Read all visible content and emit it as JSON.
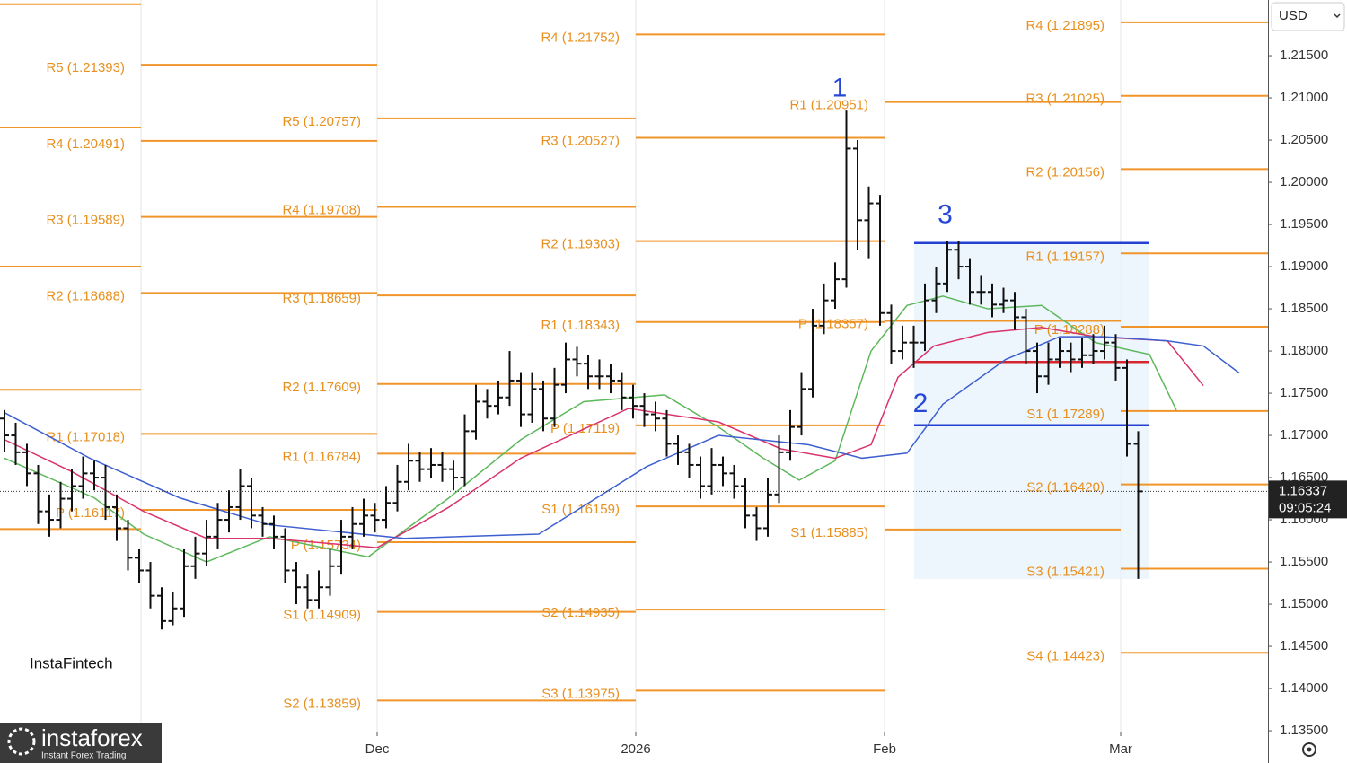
{
  "chart_data": {
    "type": "ohlc",
    "xlim": [
      -0.4,
      112.56
    ],
    "ylim": [
      1.1349,
      1.2216
    ],
    "xticks": [
      {
        "value": 33.2,
        "label": "Dec"
      },
      {
        "value": 56.24,
        "label": "2026"
      },
      {
        "value": 78.4,
        "label": "Feb"
      },
      {
        "value": 99.44,
        "label": "Mar"
      }
    ],
    "yticks": [
      {
        "value": 1.135,
        "label": "1.13500"
      },
      {
        "value": 1.14,
        "label": "1.14000"
      },
      {
        "value": 1.145,
        "label": "1.14500"
      },
      {
        "value": 1.15,
        "label": "1.15000"
      },
      {
        "value": 1.155,
        "label": "1.15500"
      },
      {
        "value": 1.16,
        "label": "1.16000"
      },
      {
        "value": 1.165,
        "label": "1.16500"
      },
      {
        "value": 1.17,
        "label": "1.17000"
      },
      {
        "value": 1.175,
        "label": "1.17500"
      },
      {
        "value": 1.18,
        "label": "1.18000"
      },
      {
        "value": 1.185,
        "label": "1.18500"
      },
      {
        "value": 1.19,
        "label": "1.19000"
      },
      {
        "value": 1.195,
        "label": "1.19500"
      },
      {
        "value": 1.2,
        "label": "1.20000"
      },
      {
        "value": 1.205,
        "label": "1.20500"
      },
      {
        "value": 1.21,
        "label": "1.21000"
      },
      {
        "value": 1.215,
        "label": "1.21500"
      }
    ],
    "bar_color": "#111111",
    "pivot_color": "#f0952a",
    "x": [
      0,
      1,
      2,
      3,
      4,
      5,
      6,
      7,
      8,
      9,
      10,
      11,
      12,
      13,
      14,
      15,
      16,
      17,
      18,
      19,
      20,
      21,
      22,
      23,
      24,
      25,
      26,
      27,
      28,
      29,
      30,
      31,
      32,
      33,
      34,
      35,
      36,
      37,
      38,
      39,
      40,
      41,
      42,
      43,
      44,
      45,
      46,
      47,
      48,
      49,
      50,
      51,
      52,
      53,
      54,
      55,
      56,
      57,
      58,
      59,
      60,
      61,
      62,
      63,
      64,
      65,
      66,
      67,
      68,
      69,
      70,
      71,
      72,
      73,
      74,
      75,
      76,
      77,
      78,
      79,
      80,
      81,
      82,
      83,
      84,
      85,
      86,
      87,
      88,
      89,
      90,
      91,
      92,
      93,
      94,
      95,
      96,
      97,
      98,
      99,
      100,
      101
    ],
    "ohlc": [
      [
        1.172,
        1.173,
        1.168,
        1.17
      ],
      [
        1.17,
        1.1715,
        1.1665,
        1.168
      ],
      [
        1.168,
        1.169,
        1.164,
        1.1655
      ],
      [
        1.1655,
        1.1665,
        1.1595,
        1.161
      ],
      [
        1.161,
        1.163,
        1.158,
        1.16
      ],
      [
        1.16,
        1.1645,
        1.159,
        1.1625
      ],
      [
        1.1625,
        1.166,
        1.161,
        1.164
      ],
      [
        1.164,
        1.1675,
        1.1625,
        1.1655
      ],
      [
        1.1655,
        1.167,
        1.1635,
        1.165
      ],
      [
        1.165,
        1.1665,
        1.16,
        1.1615
      ],
      [
        1.1615,
        1.163,
        1.1575,
        1.159
      ],
      [
        1.159,
        1.16,
        1.154,
        1.1555
      ],
      [
        1.1555,
        1.1565,
        1.1525,
        1.154
      ],
      [
        1.154,
        1.155,
        1.1495,
        1.151
      ],
      [
        1.151,
        1.152,
        1.147,
        1.148
      ],
      [
        1.148,
        1.1515,
        1.1475,
        1.1495
      ],
      [
        1.1495,
        1.1565,
        1.1485,
        1.1545
      ],
      [
        1.1545,
        1.158,
        1.153,
        1.156
      ],
      [
        1.156,
        1.16,
        1.1545,
        1.158
      ],
      [
        1.158,
        1.162,
        1.1565,
        1.16
      ],
      [
        1.16,
        1.1635,
        1.1585,
        1.1615
      ],
      [
        1.1615,
        1.166,
        1.16,
        1.164
      ],
      [
        1.164,
        1.165,
        1.159,
        1.1605
      ],
      [
        1.1605,
        1.1615,
        1.158,
        1.1595
      ],
      [
        1.1595,
        1.1605,
        1.1565,
        1.158
      ],
      [
        1.158,
        1.159,
        1.1525,
        1.154
      ],
      [
        1.154,
        1.155,
        1.15,
        1.152
      ],
      [
        1.152,
        1.1535,
        1.1495,
        1.1505
      ],
      [
        1.1505,
        1.154,
        1.1495,
        1.152
      ],
      [
        1.152,
        1.1565,
        1.151,
        1.1545
      ],
      [
        1.1545,
        1.16,
        1.1535,
        1.158
      ],
      [
        1.158,
        1.1615,
        1.1565,
        1.1595
      ],
      [
        1.1595,
        1.1625,
        1.158,
        1.1605
      ],
      [
        1.1605,
        1.162,
        1.1585,
        1.16
      ],
      [
        1.16,
        1.164,
        1.159,
        1.162
      ],
      [
        1.162,
        1.1665,
        1.161,
        1.1645
      ],
      [
        1.1645,
        1.169,
        1.1635,
        1.167
      ],
      [
        1.167,
        1.168,
        1.1645,
        1.166
      ],
      [
        1.166,
        1.1685,
        1.165,
        1.1665
      ],
      [
        1.1665,
        1.168,
        1.1645,
        1.166
      ],
      [
        1.166,
        1.167,
        1.1635,
        1.165
      ],
      [
        1.165,
        1.1725,
        1.164,
        1.1705
      ],
      [
        1.1705,
        1.176,
        1.1695,
        1.174
      ],
      [
        1.174,
        1.1755,
        1.172,
        1.1735
      ],
      [
        1.1735,
        1.1765,
        1.1725,
        1.1745
      ],
      [
        1.1745,
        1.18,
        1.1735,
        1.1765
      ],
      [
        1.1765,
        1.1775,
        1.171,
        1.1725
      ],
      [
        1.1725,
        1.1775,
        1.1715,
        1.1755
      ],
      [
        1.1755,
        1.1765,
        1.1705,
        1.172
      ],
      [
        1.172,
        1.178,
        1.171,
        1.176
      ],
      [
        1.176,
        1.181,
        1.175,
        1.179
      ],
      [
        1.179,
        1.1805,
        1.177,
        1.1785
      ],
      [
        1.1785,
        1.1795,
        1.1755,
        1.177
      ],
      [
        1.177,
        1.179,
        1.1755,
        1.177
      ],
      [
        1.177,
        1.1785,
        1.175,
        1.1765
      ],
      [
        1.1765,
        1.1775,
        1.173,
        1.1745
      ],
      [
        1.1745,
        1.176,
        1.172,
        1.1735
      ],
      [
        1.1735,
        1.175,
        1.171,
        1.1725
      ],
      [
        1.1725,
        1.174,
        1.1705,
        1.172
      ],
      [
        1.172,
        1.173,
        1.1675,
        1.169
      ],
      [
        1.169,
        1.17,
        1.1665,
        1.168
      ],
      [
        1.168,
        1.169,
        1.165,
        1.1665
      ],
      [
        1.1665,
        1.1675,
        1.1625,
        1.164
      ],
      [
        1.164,
        1.1685,
        1.163,
        1.1665
      ],
      [
        1.1665,
        1.1675,
        1.164,
        1.1655
      ],
      [
        1.1655,
        1.1665,
        1.1625,
        1.164
      ],
      [
        1.164,
        1.165,
        1.159,
        1.1605
      ],
      [
        1.1605,
        1.1615,
        1.1575,
        1.159
      ],
      [
        1.159,
        1.165,
        1.158,
        1.163
      ],
      [
        1.163,
        1.17,
        1.162,
        1.168
      ],
      [
        1.168,
        1.173,
        1.167,
        1.171
      ],
      [
        1.171,
        1.1775,
        1.17,
        1.1755
      ],
      [
        1.1755,
        1.185,
        1.1745,
        1.183
      ],
      [
        1.183,
        1.188,
        1.182,
        1.186
      ],
      [
        1.186,
        1.1905,
        1.185,
        1.1885
      ],
      [
        1.1885,
        1.2085,
        1.1875,
        1.204
      ],
      [
        1.204,
        1.205,
        1.192,
        1.1955
      ],
      [
        1.1955,
        1.1995,
        1.191,
        1.1975
      ],
      [
        1.1975,
        1.1985,
        1.183,
        1.1845
      ],
      [
        1.1845,
        1.1855,
        1.1785,
        1.18
      ],
      [
        1.18,
        1.183,
        1.179,
        1.181
      ],
      [
        1.181,
        1.183,
        1.178,
        1.181
      ],
      [
        1.181,
        1.188,
        1.18,
        1.186
      ],
      [
        1.186,
        1.19,
        1.1845,
        1.188
      ],
      [
        1.188,
        1.193,
        1.187,
        1.192
      ],
      [
        1.192,
        1.193,
        1.1885,
        1.19
      ],
      [
        1.19,
        1.191,
        1.1855,
        1.187
      ],
      [
        1.187,
        1.189,
        1.1855,
        1.187
      ],
      [
        1.187,
        1.188,
        1.184,
        1.1855
      ],
      [
        1.1855,
        1.1875,
        1.1845,
        1.186
      ],
      [
        1.186,
        1.187,
        1.1825,
        1.184
      ],
      [
        1.184,
        1.185,
        1.1785,
        1.18
      ],
      [
        1.18,
        1.181,
        1.175,
        1.177
      ],
      [
        1.177,
        1.181,
        1.176,
        1.179
      ],
      [
        1.179,
        1.1815,
        1.178,
        1.18
      ],
      [
        1.18,
        1.181,
        1.1775,
        1.179
      ],
      [
        1.179,
        1.1815,
        1.178,
        1.1795
      ],
      [
        1.1795,
        1.182,
        1.1785,
        1.18
      ],
      [
        1.18,
        1.183,
        1.179,
        1.181
      ],
      [
        1.181,
        1.182,
        1.1765,
        1.178
      ],
      [
        1.178,
        1.179,
        1.1675,
        1.169
      ],
      [
        1.169,
        1.1705,
        1.153,
        1.16337
      ]
    ],
    "series": [
      {
        "color": "#5db85b",
        "x": [
          0,
          8,
          12.4,
          18,
          23.6,
          32.4,
          39.6,
          46,
          51.6,
          58.8,
          63.6,
          67.6,
          70.8,
          74,
          77.2,
          80.4,
          83.6,
          87.6,
          92.4,
          97.2,
          102,
          104.4
        ],
        "values": [
          1.1673,
          1.1626,
          1.1583,
          1.155,
          1.158,
          1.1556,
          1.1626,
          1.1695,
          1.174,
          1.1748,
          1.171,
          1.1673,
          1.1647,
          1.167,
          1.18,
          1.1854,
          1.1865,
          1.185,
          1.1854,
          1.181,
          1.1796,
          1.173
        ]
      },
      {
        "color": "#d9336b",
        "x": [
          0,
          6,
          12.4,
          18,
          23.6,
          33.2,
          39.6,
          46,
          55.6,
          63.6,
          69.2,
          74,
          77.2,
          79.6,
          82.8,
          87.6,
          92.4,
          97.2,
          103.6,
          106.8
        ],
        "values": [
          1.1695,
          1.1657,
          1.161,
          1.1578,
          1.1578,
          1.1567,
          1.1615,
          1.1673,
          1.1732,
          1.1716,
          1.1684,
          1.1673,
          1.1689,
          1.1769,
          1.1806,
          1.1822,
          1.1828,
          1.1817,
          1.1812,
          1.1759
        ]
      },
      {
        "color": "#3d5fd0",
        "x": [
          0,
          7.6,
          15.6,
          23.6,
          35.6,
          47.6,
          57.2,
          63.6,
          71.6,
          76.4,
          80.4,
          83.6,
          89.2,
          94,
          98,
          103.6,
          106.8,
          110
        ],
        "values": [
          1.1727,
          1.1673,
          1.1626,
          1.1594,
          1.1578,
          1.1583,
          1.1663,
          1.17,
          1.1689,
          1.1673,
          1.1679,
          1.1737,
          1.179,
          1.1817,
          1.1817,
          1.1812,
          1.1806,
          1.1774
        ]
      }
    ],
    "pivots": [
      {
        "start": -0.4,
        "end": 12.16,
        "levels": [
          {
            "label": null,
            "value": 1.2211
          },
          {
            "label": null,
            "value": 1.2065
          },
          {
            "label": null,
            "value": 1.19
          },
          {
            "label": null,
            "value": 1.1754
          },
          {
            "label": null,
            "value": 1.1589
          }
        ]
      },
      {
        "start": 12.16,
        "end": 33.2,
        "levels": [
          {
            "label": "R5 (1.21393)",
            "value": 1.21393
          },
          {
            "label": "R4 (1.20491)",
            "value": 1.20491
          },
          {
            "label": "R3 (1.19589)",
            "value": 1.19589
          },
          {
            "label": "R2 (1.18688)",
            "value": 1.18688
          },
          {
            "label": "R1 (1.17018)",
            "value": 1.17018
          },
          {
            "label": "P (1.16117)",
            "value": 1.16117
          }
        ]
      },
      {
        "start": 33.2,
        "end": 56.24,
        "levels": [
          {
            "label": "R5 (1.20757)",
            "value": 1.20757
          },
          {
            "label": "R4 (1.19708)",
            "value": 1.19708
          },
          {
            "label": "R3 (1.18659)",
            "value": 1.18659
          },
          {
            "label": "R2 (1.17609)",
            "value": 1.17609
          },
          {
            "label": "R1 (1.16784)",
            "value": 1.16784
          },
          {
            "label": "P (1.15734)",
            "value": 1.15734
          },
          {
            "label": "S1 (1.14909)",
            "value": 1.14909
          },
          {
            "label": "S2 (1.13859)",
            "value": 1.13859
          }
        ]
      },
      {
        "start": 56.24,
        "end": 78.4,
        "levels": [
          {
            "label": "R4 (1.21752)",
            "value": 1.21752
          },
          {
            "label": "R3 (1.20527)",
            "value": 1.20527
          },
          {
            "label": "R2 (1.19303)",
            "value": 1.19303
          },
          {
            "label": "R1 (1.18343)",
            "value": 1.18343
          },
          {
            "label": "P (1.17119)",
            "value": 1.17119
          },
          {
            "label": "S1 (1.16159)",
            "value": 1.16159
          },
          {
            "label": "S2 (1.14935)",
            "value": 1.14935
          },
          {
            "label": "S3 (1.13975)",
            "value": 1.13975
          }
        ]
      },
      {
        "start": 78.4,
        "end": 99.44,
        "levels": [
          {
            "label": "R1 (1.20951)",
            "value": 1.20951
          },
          {
            "label": "P (1.18357)",
            "value": 1.18357
          },
          {
            "label": "S1 (1.15885)",
            "value": 1.15885
          }
        ]
      },
      {
        "start": 99.44,
        "end": 112.56,
        "levels": [
          {
            "label": "R4 (1.21895)",
            "value": 1.21895
          },
          {
            "label": "R3 (1.21025)",
            "value": 1.21025
          },
          {
            "label": "R2 (1.20156)",
            "value": 1.20156
          },
          {
            "label": "R1 (1.19157)",
            "value": 1.19157
          },
          {
            "label": "P (1.18288)",
            "value": 1.18288
          },
          {
            "label": "S1 (1.17289)",
            "value": 1.17289
          },
          {
            "label": "S2 (1.16420)",
            "value": 1.1642
          },
          {
            "label": "S3 (1.15421)",
            "value": 1.15421
          },
          {
            "label": "S4 (1.14423)",
            "value": 1.14423
          }
        ]
      }
    ],
    "profile": {
      "x0": 81.04,
      "x1": 102,
      "high": 1.1928,
      "low": 1.1712,
      "poc": 1.1787,
      "extent_low": 1.153
    },
    "annotations": [
      {
        "text": "1",
        "x": 74.4,
        "y": 1.211
      },
      {
        "text": "2",
        "x": 81.6,
        "y": 1.1736
      },
      {
        "text": "3",
        "x": 83.8,
        "y": 1.196
      }
    ],
    "last_price": 1.16337,
    "countdown": "09:05:24",
    "currency": "USD",
    "brand_top": "InstaFintech",
    "brand_bottom": "instaforex",
    "brand_tagline": "Instant Forex Trading"
  }
}
